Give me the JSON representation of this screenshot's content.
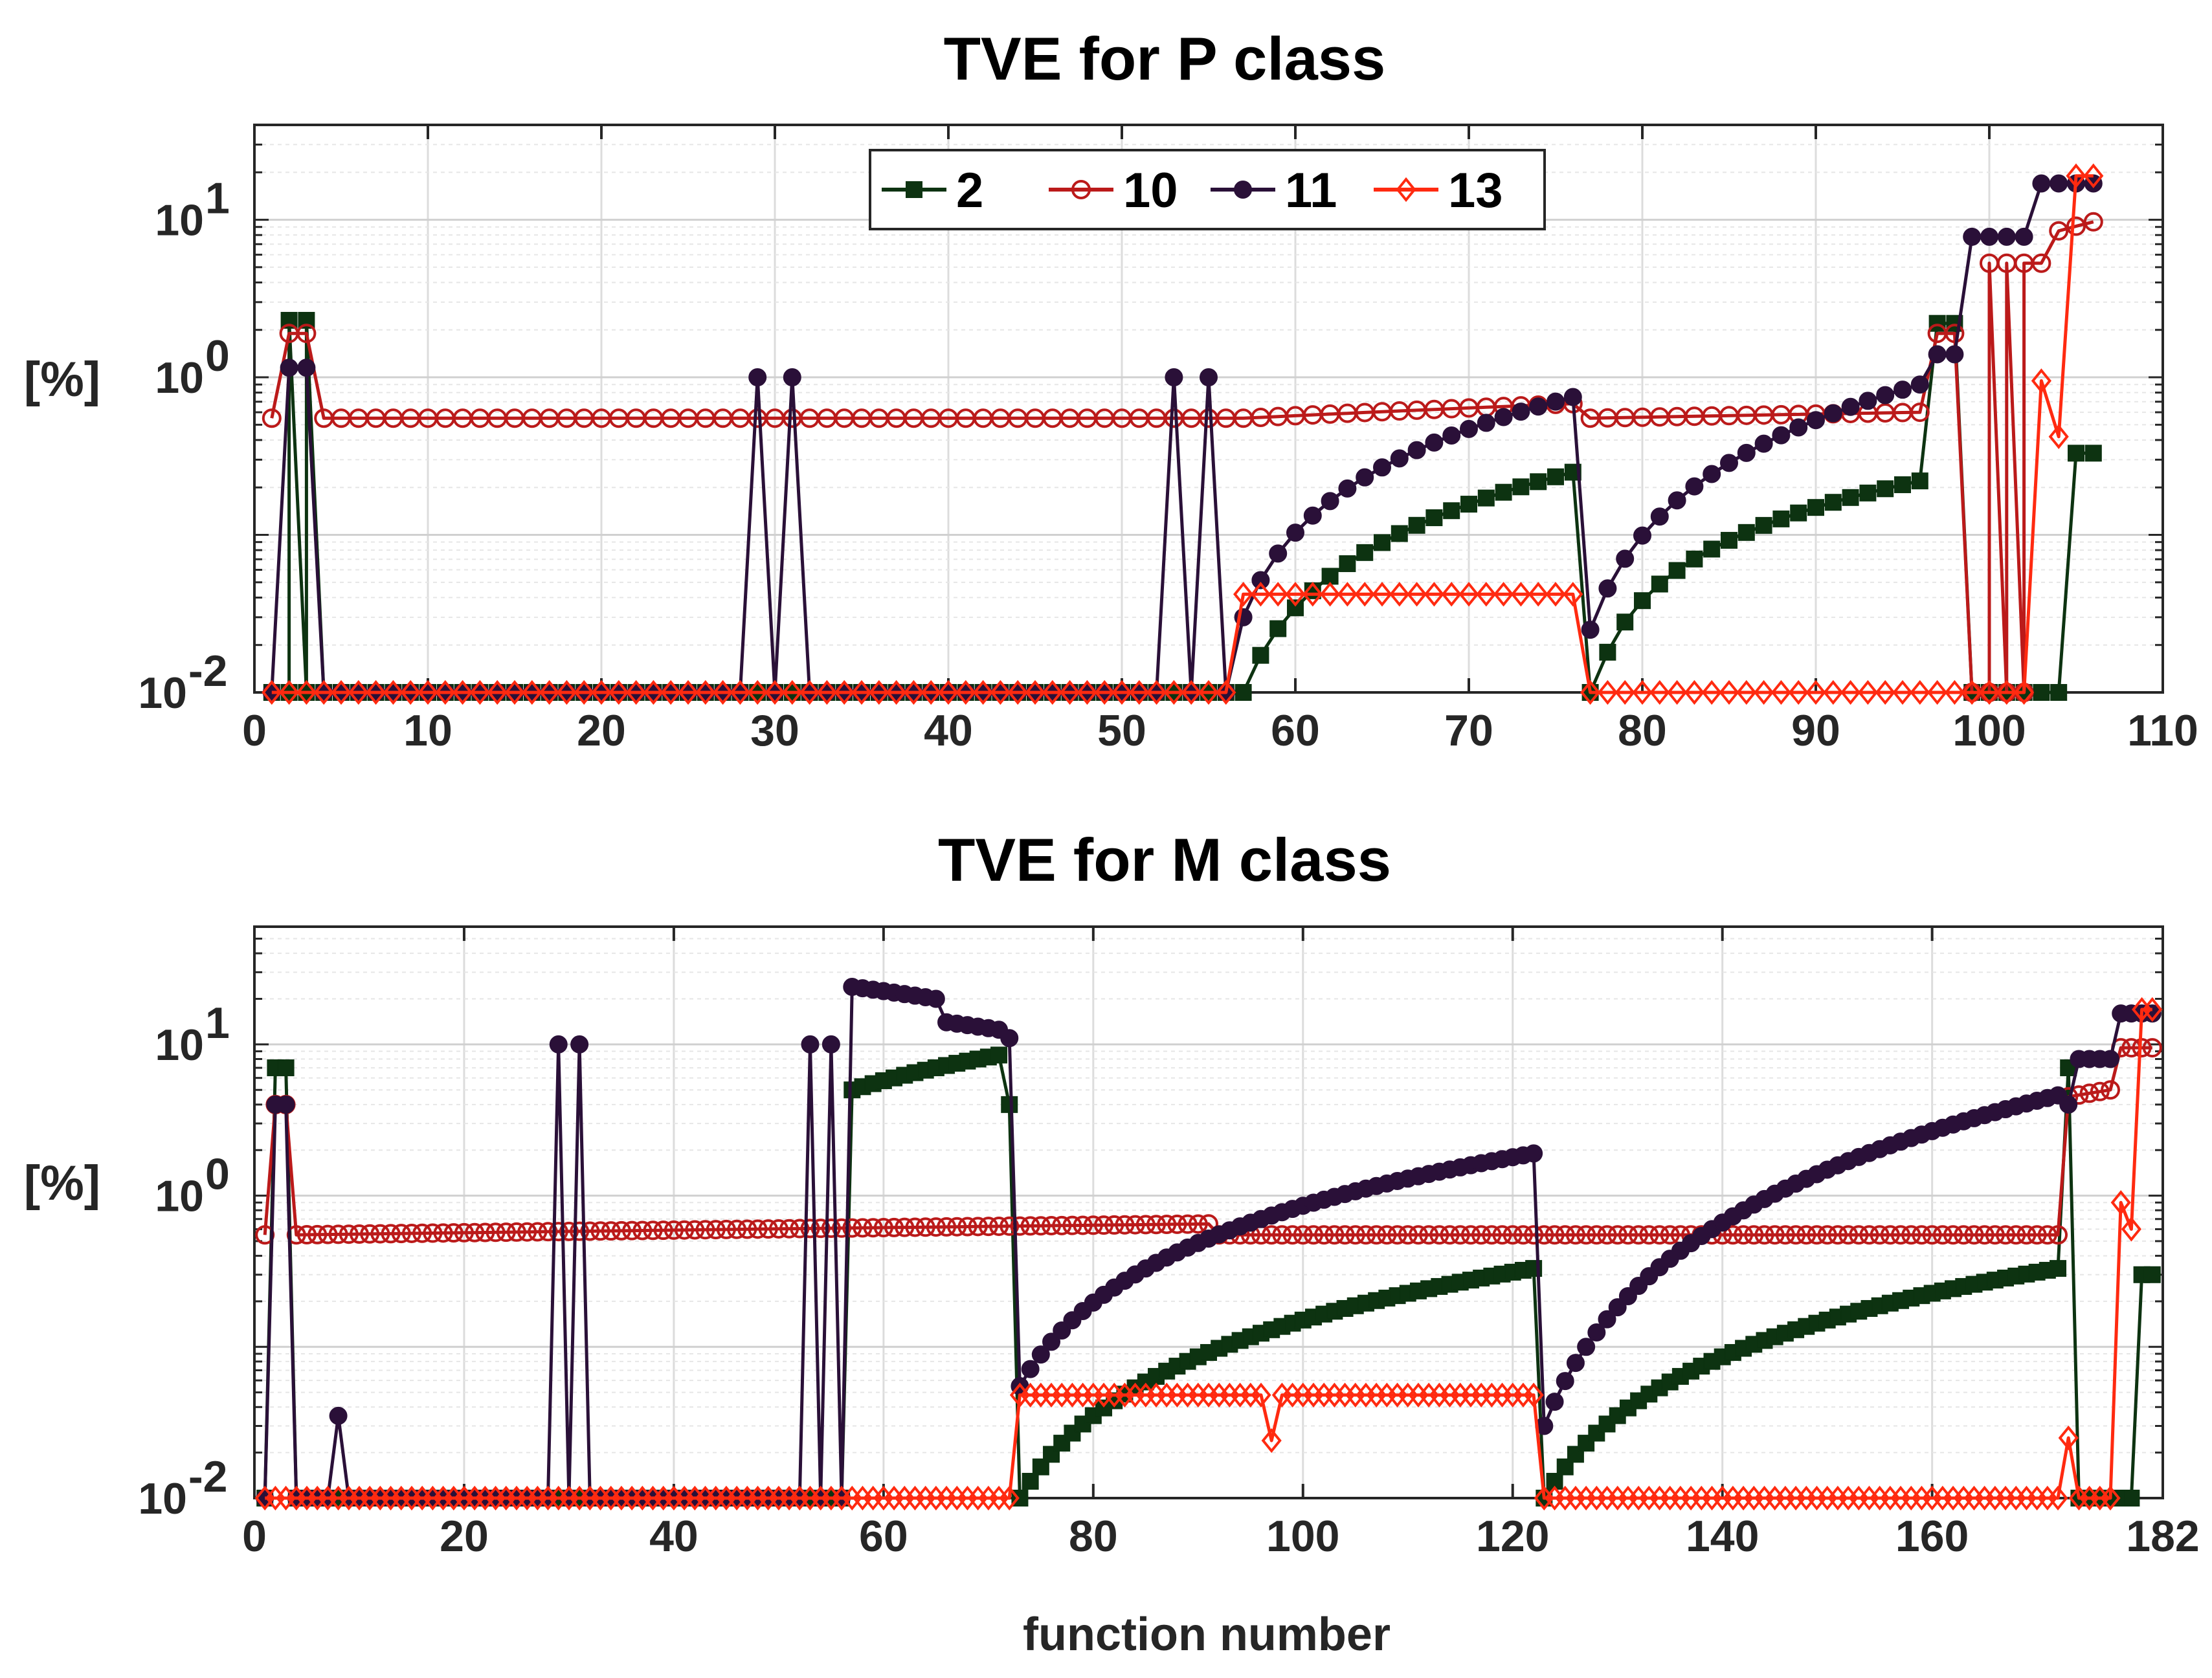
{
  "chart_data": [
    {
      "type": "line",
      "scale_y": "log",
      "title": "TVE for P class",
      "xlabel": "",
      "ylabel": "[%]",
      "xlim": [
        0,
        110
      ],
      "ylim": [
        0.01,
        40
      ],
      "xticks": [
        0,
        10,
        20,
        30,
        40,
        50,
        60,
        70,
        80,
        90,
        100,
        110
      ],
      "xtick_labels": [
        "0",
        "10",
        "20",
        "30",
        "40",
        "50",
        "60",
        "70",
        "80",
        "90",
        "100",
        "110"
      ],
      "yticks": [
        0.01,
        1,
        10
      ],
      "ytick_labels": [
        {
          "base": "10",
          "exp": "-2"
        },
        {
          "base": "10",
          "exp": "0"
        },
        {
          "base": "10",
          "exp": "1"
        }
      ],
      "grid": true,
      "legend_position": "top-center, single row",
      "legend": [
        "2",
        "10",
        "11",
        "13"
      ],
      "colors": {
        "2": "#0d3311",
        "10": "#bb1a1a",
        "11": "#2a1038",
        "13": "#ff2a10"
      },
      "markers": {
        "2": "square",
        "10": "circle-open",
        "11": "circle",
        "13": "diamond-open"
      },
      "n_points": 106,
      "series": [
        {
          "name": "2",
          "segments": [
            {
              "x": [
                1,
                4
              ],
              "values": [
                0.01,
                0.01
              ]
            },
            {
              "x": [
                2,
                3
              ],
              "values": [
                2.3,
                2.3
              ]
            },
            {
              "x": [
                5,
                56
              ],
              "values": [
                0.01,
                0.01
              ]
            },
            {
              "x": [
                57,
                76
              ],
              "values": [
                0.01,
                0.25
              ],
              "curve": "log"
            },
            {
              "x": [
                77,
                77
              ],
              "values": [
                0.01,
                0.01
              ]
            },
            {
              "x": [
                78,
                96
              ],
              "values": [
                0.018,
                0.22
              ],
              "curve": "log"
            },
            {
              "x": [
                97,
                98
              ],
              "values": [
                2.2,
                2.2
              ]
            },
            {
              "x": [
                99,
                104
              ],
              "values": [
                0.01,
                0.01
              ]
            },
            {
              "x": [
                105,
                106
              ],
              "values": [
                0.33,
                0.33
              ]
            }
          ]
        },
        {
          "name": "10",
          "segments": [
            {
              "x": [
                1,
                1
              ],
              "values": [
                0.55,
                0.55
              ]
            },
            {
              "x": [
                2,
                3
              ],
              "values": [
                1.9,
                1.9
              ]
            },
            {
              "x": [
                4,
                56
              ],
              "values": [
                0.55,
                0.55
              ]
            },
            {
              "x": [
                57,
                76
              ],
              "values": [
                0.55,
                0.68
              ]
            },
            {
              "x": [
                77,
                96
              ],
              "values": [
                0.55,
                0.6
              ]
            },
            {
              "x": [
                97,
                98
              ],
              "values": [
                1.9,
                1.9
              ]
            },
            {
              "x": [
                99,
                102
              ],
              "values": [
                0.01,
                0.01
              ]
            },
            {
              "x": [
                100,
                103
              ],
              "values": [
                5.3,
                5.3
              ]
            },
            {
              "x": [
                104,
                106
              ],
              "values": [
                8.5,
                9.7
              ]
            }
          ]
        },
        {
          "name": "11",
          "segments": [
            {
              "x": [
                1,
                1
              ],
              "values": [
                0.01,
                0.01
              ]
            },
            {
              "x": [
                2,
                3
              ],
              "values": [
                1.15,
                1.15
              ]
            },
            {
              "x": [
                4,
                28
              ],
              "values": [
                0.01,
                0.01
              ]
            },
            {
              "x": [
                29,
                29
              ],
              "values": [
                1.0,
                1.0
              ]
            },
            {
              "x": [
                30,
                30
              ],
              "values": [
                0.01,
                0.01
              ]
            },
            {
              "x": [
                31,
                31
              ],
              "values": [
                1.0,
                1.0
              ]
            },
            {
              "x": [
                32,
                52
              ],
              "values": [
                0.01,
                0.01
              ]
            },
            {
              "x": [
                53,
                53
              ],
              "values": [
                1.0,
                1.0
              ]
            },
            {
              "x": [
                54,
                54
              ],
              "values": [
                0.01,
                0.01
              ]
            },
            {
              "x": [
                55,
                55
              ],
              "values": [
                1.0,
                1.0
              ]
            },
            {
              "x": [
                56,
                56
              ],
              "values": [
                0.01,
                0.01
              ]
            },
            {
              "x": [
                57,
                76
              ],
              "values": [
                0.03,
                0.75
              ],
              "curve": "log"
            },
            {
              "x": [
                77,
                96
              ],
              "values": [
                0.025,
                0.9
              ],
              "curve": "log"
            },
            {
              "x": [
                97,
                98
              ],
              "values": [
                1.4,
                1.4
              ]
            },
            {
              "x": [
                99,
                102
              ],
              "values": [
                7.8,
                7.8
              ]
            },
            {
              "x": [
                103,
                106
              ],
              "values": [
                17,
                17
              ]
            }
          ]
        },
        {
          "name": "13",
          "segments": [
            {
              "x": [
                1,
                56
              ],
              "values": [
                0.01,
                0.01
              ]
            },
            {
              "x": [
                57,
                76
              ],
              "values": [
                0.042,
                0.042
              ]
            },
            {
              "x": [
                77,
                102
              ],
              "values": [
                0.01,
                0.01
              ]
            },
            {
              "x": [
                103,
                104
              ],
              "values": [
                0.95,
                0.42
              ]
            },
            {
              "x": [
                105,
                106
              ],
              "values": [
                19,
                19
              ]
            }
          ]
        }
      ]
    },
    {
      "type": "line",
      "scale_y": "log",
      "title": "TVE for M class",
      "xlabel": "function number",
      "ylabel": "[%]",
      "xlim": [
        0,
        182
      ],
      "ylim": [
        0.01,
        60
      ],
      "xticks": [
        0,
        20,
        40,
        60,
        80,
        100,
        120,
        140,
        160,
        182
      ],
      "xtick_labels": [
        "0",
        "20",
        "40",
        "60",
        "80",
        "100",
        "120",
        "140",
        "160",
        "182"
      ],
      "yticks": [
        0.01,
        1,
        10
      ],
      "ytick_labels": [
        {
          "base": "10",
          "exp": "-2"
        },
        {
          "base": "10",
          "exp": "0"
        },
        {
          "base": "10",
          "exp": "1"
        }
      ],
      "grid": true,
      "colors": {
        "2": "#0d3311",
        "10": "#bb1a1a",
        "11": "#2a1038",
        "13": "#ff2a10"
      },
      "markers": {
        "2": "square",
        "10": "circle-open",
        "11": "circle",
        "13": "diamond-open"
      },
      "n_points": 181,
      "series": [
        {
          "name": "2",
          "segments": [
            {
              "x": [
                1,
                1
              ],
              "values": [
                0.01,
                0.01
              ]
            },
            {
              "x": [
                2,
                3
              ],
              "values": [
                7,
                7
              ]
            },
            {
              "x": [
                4,
                56
              ],
              "values": [
                0.01,
                0.01
              ]
            },
            {
              "x": [
                57,
                71
              ],
              "values": [
                5,
                8.5
              ]
            },
            {
              "x": [
                72,
                72
              ],
              "values": [
                4,
                4
              ]
            },
            {
              "x": [
                73,
                122
              ],
              "values": [
                0.01,
                0.33
              ],
              "curve": "log"
            },
            {
              "x": [
                123,
                172
              ],
              "values": [
                0.01,
                0.33
              ],
              "curve": "log"
            },
            {
              "x": [
                173,
                173
              ],
              "values": [
                7,
                7
              ]
            },
            {
              "x": [
                174,
                179
              ],
              "values": [
                0.01,
                0.01
              ]
            },
            {
              "x": [
                180,
                181
              ],
              "values": [
                0.3,
                0.3
              ]
            }
          ]
        },
        {
          "name": "10",
          "segments": [
            {
              "x": [
                1,
                1
              ],
              "values": [
                0.55,
                0.55
              ]
            },
            {
              "x": [
                2,
                3
              ],
              "values": [
                4,
                4
              ]
            },
            {
              "x": [
                4,
                91
              ],
              "values": [
                0.55,
                0.65
              ]
            },
            {
              "x": [
                92,
                172
              ],
              "values": [
                0.55,
                0.55
              ]
            },
            {
              "x": [
                173,
                177
              ],
              "values": [
                4.5,
                5
              ]
            },
            {
              "x": [
                178,
                181
              ],
              "values": [
                9.5,
                9.5
              ]
            }
          ]
        },
        {
          "name": "11",
          "segments": [
            {
              "x": [
                1,
                1
              ],
              "values": [
                0.01,
                0.01
              ]
            },
            {
              "x": [
                2,
                3
              ],
              "values": [
                4,
                4
              ]
            },
            {
              "x": [
                4,
                7
              ],
              "values": [
                0.01,
                0.01
              ]
            },
            {
              "x": [
                8,
                8
              ],
              "values": [
                0.035,
                0.035
              ]
            },
            {
              "x": [
                9,
                28
              ],
              "values": [
                0.01,
                0.01
              ]
            },
            {
              "x": [
                29,
                29
              ],
              "values": [
                10,
                10
              ]
            },
            {
              "x": [
                30,
                30
              ],
              "values": [
                0.01,
                0.01
              ]
            },
            {
              "x": [
                31,
                31
              ],
              "values": [
                10,
                10
              ]
            },
            {
              "x": [
                32,
                52
              ],
              "values": [
                0.01,
                0.01
              ]
            },
            {
              "x": [
                53,
                53
              ],
              "values": [
                10,
                10
              ]
            },
            {
              "x": [
                54,
                54
              ],
              "values": [
                0.01,
                0.01
              ]
            },
            {
              "x": [
                55,
                55
              ],
              "values": [
                10,
                10
              ]
            },
            {
              "x": [
                56,
                56
              ],
              "values": [
                0.01,
                0.01
              ]
            },
            {
              "x": [
                57,
                65
              ],
              "values": [
                24,
                20
              ]
            },
            {
              "x": [
                66,
                71
              ],
              "values": [
                14,
                12.5
              ]
            },
            {
              "x": [
                72,
                72
              ],
              "values": [
                11,
                11
              ]
            },
            {
              "x": [
                73,
                122
              ],
              "values": [
                0.055,
                1.9
              ],
              "curve": "log"
            },
            {
              "x": [
                123,
                172
              ],
              "values": [
                0.03,
                4.6
              ],
              "curve": "log"
            },
            {
              "x": [
                173,
                173
              ],
              "values": [
                4,
                4
              ]
            },
            {
              "x": [
                174,
                177
              ],
              "values": [
                8,
                8
              ]
            },
            {
              "x": [
                178,
                181
              ],
              "values": [
                16,
                16
              ]
            }
          ]
        },
        {
          "name": "13",
          "segments": [
            {
              "x": [
                1,
                72
              ],
              "values": [
                0.01,
                0.01
              ]
            },
            {
              "x": [
                73,
                96
              ],
              "values": [
                0.048,
                0.048
              ]
            },
            {
              "x": [
                97,
                97
              ],
              "values": [
                0.024,
                0.024
              ]
            },
            {
              "x": [
                98,
                122
              ],
              "values": [
                0.048,
                0.048
              ]
            },
            {
              "x": [
                123,
                172
              ],
              "values": [
                0.01,
                0.01
              ]
            },
            {
              "x": [
                173,
                173
              ],
              "values": [
                0.025,
                0.025
              ]
            },
            {
              "x": [
                174,
                177
              ],
              "values": [
                0.01,
                0.01
              ]
            },
            {
              "x": [
                178,
                179
              ],
              "values": [
                0.9,
                0.6
              ]
            },
            {
              "x": [
                180,
                181
              ],
              "values": [
                17,
                17
              ]
            }
          ]
        }
      ]
    }
  ]
}
